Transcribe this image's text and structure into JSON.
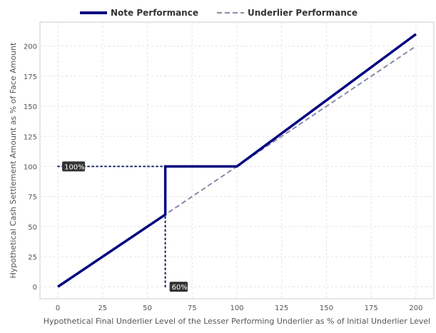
{
  "chart_data": {
    "type": "line",
    "title": "",
    "xlabel": "Hypothetical Final Underlier Level of the Lesser Performing Underlier as % of Initial Underlier Level",
    "ylabel": "Hypothetical Cash Settlement Amount as % of Face Amount",
    "xlim": [
      -10,
      210
    ],
    "ylim": [
      -10,
      220
    ],
    "xticks": [
      0,
      25,
      50,
      75,
      100,
      125,
      150,
      175,
      200
    ],
    "yticks": [
      0,
      25,
      50,
      75,
      100,
      125,
      150,
      175,
      200
    ],
    "grid": true,
    "legend_position": "top-center",
    "series": [
      {
        "name": "Note Performance",
        "color": "#000080",
        "style": "solid",
        "points": [
          [
            0,
            0
          ],
          [
            60,
            60
          ],
          [
            60,
            100
          ],
          [
            100,
            100
          ],
          [
            200,
            210
          ]
        ]
      },
      {
        "name": "Underlier Performance",
        "color": "#8a8aa8",
        "style": "dashed",
        "points": [
          [
            0,
            0
          ],
          [
            200,
            200
          ]
        ]
      }
    ],
    "guides": [
      {
        "points": [
          [
            0,
            100
          ],
          [
            60,
            100
          ]
        ],
        "color": "#1a2a6c",
        "style": "dotted"
      },
      {
        "points": [
          [
            60,
            0
          ],
          [
            60,
            60
          ]
        ],
        "color": "#1a2a6c",
        "style": "dotted"
      }
    ],
    "annotations": [
      {
        "text": "100%",
        "x": 0,
        "y": 100
      },
      {
        "text": "60%",
        "x": 60,
        "y": 0
      }
    ]
  }
}
